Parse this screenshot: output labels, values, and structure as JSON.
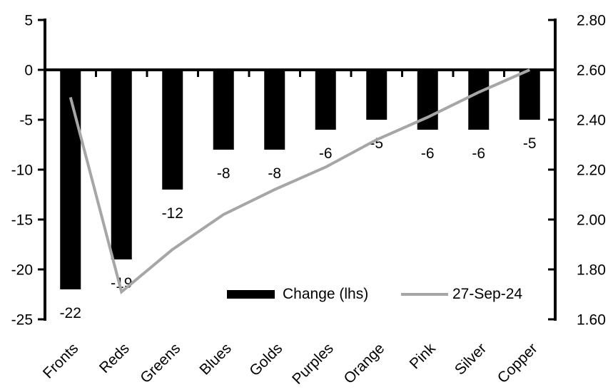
{
  "chart_data": {
    "type": "bar",
    "subtype": "bar-line-combo",
    "title": "",
    "categories": [
      "Fronts",
      "Reds",
      "Greens",
      "Blues",
      "Golds",
      "Purples",
      "Orange",
      "Pink",
      "Silver",
      "Copper"
    ],
    "series": [
      {
        "name": "Change (lhs)",
        "type": "bar",
        "axis": "left",
        "color": "#000000",
        "values": [
          -22,
          -19,
          -12,
          -8,
          -8,
          -6,
          -5,
          -6,
          -6,
          -5
        ]
      },
      {
        "name": "27-Sep-24",
        "type": "line",
        "axis": "right",
        "color": "#a6a6a6",
        "values": [
          2.49,
          1.71,
          1.88,
          2.02,
          2.12,
          2.21,
          2.32,
          2.41,
          2.51,
          2.6
        ]
      }
    ],
    "data_labels": [
      "-22",
      "-19",
      "-12",
      "-8",
      "-8",
      "-6",
      "-5",
      "-6",
      "-6",
      "-5"
    ],
    "left_axis": {
      "ticks": [
        "5",
        "0",
        "-5",
        "-10",
        "-15",
        "-20",
        "-25"
      ],
      "min": -25,
      "max": 5
    },
    "right_axis": {
      "ticks": [
        "2.80",
        "2.60",
        "2.40",
        "2.20",
        "2.00",
        "1.80",
        "1.60"
      ],
      "min": 1.6,
      "max": 2.8
    },
    "xlabel": "",
    "ylabel": "",
    "grid": "off",
    "legend_position": "inside-bottom",
    "colors": {
      "bar": "#000000",
      "line": "#a6a6a6",
      "axis": "#000000",
      "background": "#ffffff"
    }
  }
}
